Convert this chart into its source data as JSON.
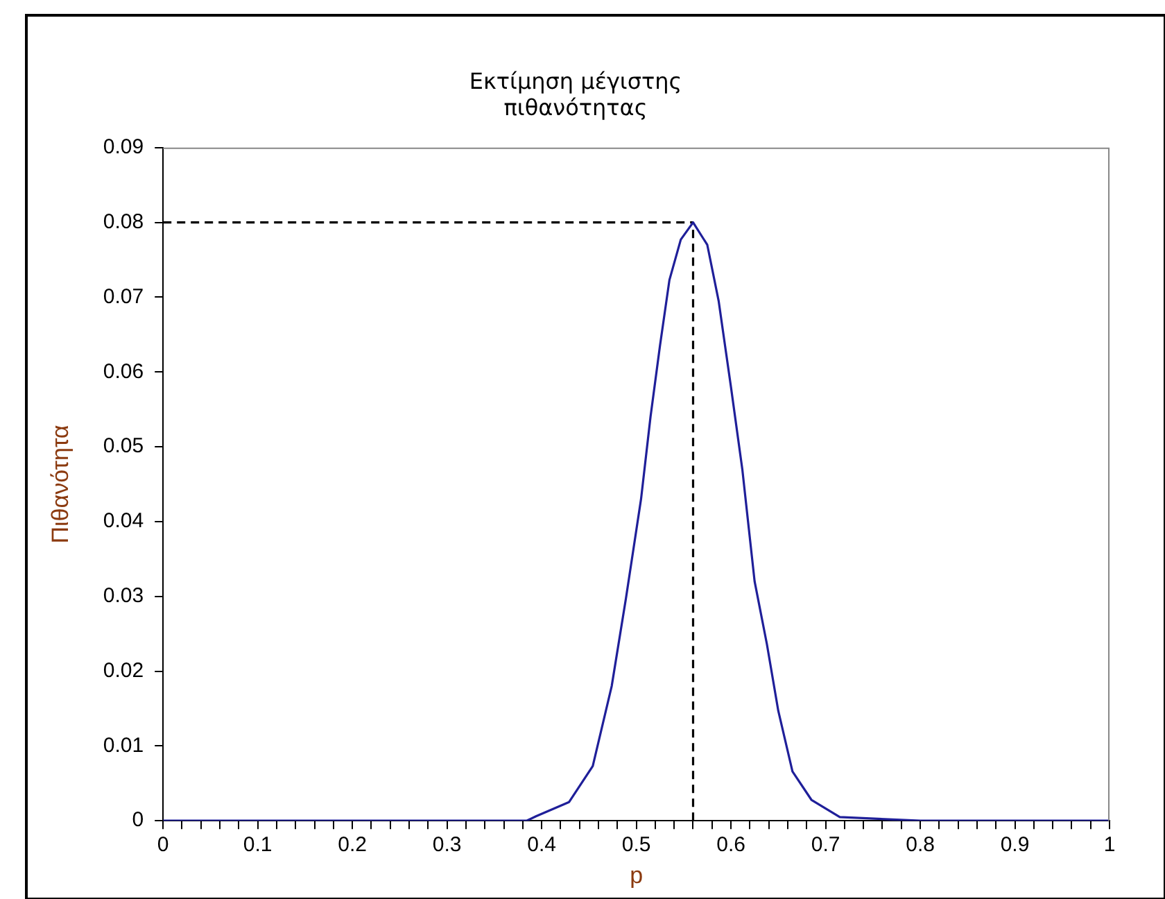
{
  "chart_data": {
    "type": "line",
    "title": "Εκτίμηση μέγιστης πιθανότητας",
    "xlabel": "p",
    "ylabel": "Πιθανότητα",
    "xlim": [
      0,
      1
    ],
    "ylim": [
      0,
      0.09
    ],
    "xticks": [
      0,
      {
        "value": 0.02,
        "label": null
      },
      {
        "value": 0.04,
        "label": null
      },
      {
        "value": 0.06,
        "label": null
      },
      {
        "value": 0.08,
        "label": null
      },
      0.1,
      {
        "value": 0.12,
        "label": null
      },
      {
        "value": 0.14,
        "label": null
      },
      {
        "value": 0.16,
        "label": null
      },
      {
        "value": 0.18,
        "label": null
      },
      0.2,
      {
        "value": 0.22,
        "label": null
      },
      {
        "value": 0.24,
        "label": null
      },
      {
        "value": 0.26,
        "label": null
      },
      {
        "value": 0.28,
        "label": null
      },
      0.3,
      {
        "value": 0.32,
        "label": null
      },
      {
        "value": 0.34,
        "label": null
      },
      {
        "value": 0.36,
        "label": null
      },
      {
        "value": 0.38,
        "label": null
      },
      0.4,
      {
        "value": 0.42,
        "label": null
      },
      {
        "value": 0.44,
        "label": null
      },
      {
        "value": 0.46,
        "label": null
      },
      {
        "value": 0.48,
        "label": null
      },
      0.5,
      {
        "value": 0.52,
        "label": null
      },
      {
        "value": 0.54,
        "label": null
      },
      {
        "value": 0.56,
        "label": null
      },
      {
        "value": 0.58,
        "label": null
      },
      0.6,
      {
        "value": 0.62,
        "label": null
      },
      {
        "value": 0.64,
        "label": null
      },
      {
        "value": 0.66,
        "label": null
      },
      {
        "value": 0.68,
        "label": null
      },
      0.7,
      {
        "value": 0.72,
        "label": null
      },
      {
        "value": 0.74,
        "label": null
      },
      {
        "value": 0.76,
        "label": null
      },
      {
        "value": 0.78,
        "label": null
      },
      0.8,
      {
        "value": 0.82,
        "label": null
      },
      {
        "value": 0.84,
        "label": null
      },
      {
        "value": 0.86,
        "label": null
      },
      {
        "value": 0.88,
        "label": null
      },
      0.9,
      {
        "value": 0.92,
        "label": null
      },
      {
        "value": 0.94,
        "label": null
      },
      {
        "value": 0.96,
        "label": null
      },
      {
        "value": 0.98,
        "label": null
      },
      1
    ],
    "yticks": [
      0,
      0.01,
      0.02,
      0.03,
      0.04,
      0.05,
      0.06,
      0.07,
      0.08,
      0.09
    ],
    "grid": false,
    "legend": false,
    "marker": "none",
    "series": [
      {
        "color": "#1f1f99",
        "x": [
          0,
          0.1,
          0.2,
          0.3,
          0.384,
          0.394,
          0.429,
          0.454,
          0.474,
          0.489,
          0.505,
          0.515,
          0.525,
          0.535,
          0.547,
          0.56,
          0.575,
          0.587,
          0.6,
          0.612,
          0.625,
          0.638,
          0.65,
          0.665,
          0.685,
          0.715,
          0.8,
          0.9,
          1
        ],
        "values": [
          0,
          0,
          0,
          0,
          0,
          0.0006,
          0.0025,
          0.0073,
          0.018,
          0.0297,
          0.043,
          0.054,
          0.0635,
          0.0723,
          0.0777,
          0.08,
          0.077,
          0.0695,
          0.058,
          0.047,
          0.032,
          0.0236,
          0.0147,
          0.0066,
          0.0028,
          0.0005,
          0,
          0,
          0
        ]
      },
      {
        "color": "#000000",
        "line_style": "dashed",
        "x": [
          0,
          0.56
        ],
        "values": [
          0.08,
          0.08
        ]
      },
      {
        "color": "#000000",
        "line_style": "dashed",
        "x": [
          0.56,
          0.56
        ],
        "values": [
          0,
          0.08
        ]
      }
    ]
  }
}
